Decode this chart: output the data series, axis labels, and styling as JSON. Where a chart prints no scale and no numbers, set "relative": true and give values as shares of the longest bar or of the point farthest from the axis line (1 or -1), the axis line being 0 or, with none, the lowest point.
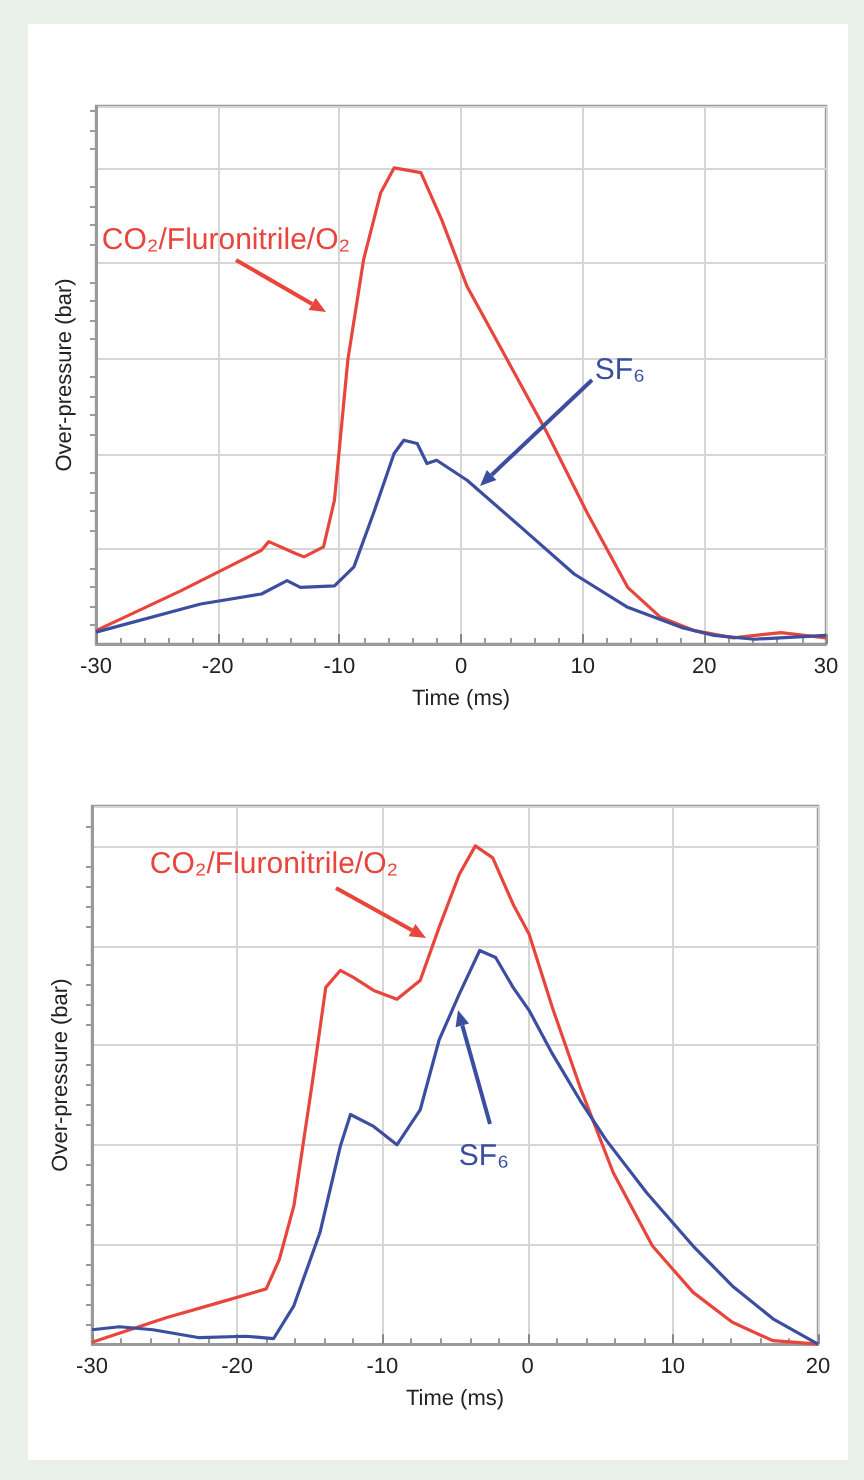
{
  "chart_data": [
    {
      "type": "line",
      "relative": true,
      "xlabel": "Time (ms)",
      "ylabel": "Over-pressure (bar)",
      "xlim": [
        -30,
        30
      ],
      "xticks": [
        -30,
        -20,
        -10,
        0,
        10,
        20,
        30
      ],
      "grid": true,
      "series": [
        {
          "name": "CO₂/Fluronitrile/O₂",
          "color": "#e8453c",
          "x": [
            -30,
            -23,
            -16.4,
            -15.8,
            -13.6,
            -12.9,
            -11.3,
            -10.4,
            -9.3,
            -8.0,
            -6.6,
            -5.5,
            -3.3,
            -1.6,
            0.5,
            3.8,
            7.1,
            10.4,
            13.7,
            16.4,
            19.2,
            22.4,
            26.3,
            30
          ],
          "values": [
            0.028,
            0.112,
            0.197,
            0.215,
            0.19,
            0.183,
            0.204,
            0.302,
            0.597,
            0.808,
            0.948,
            1.0,
            0.99,
            0.892,
            0.751,
            0.597,
            0.442,
            0.274,
            0.119,
            0.056,
            0.028,
            0.013,
            0.024,
            0.013
          ]
        },
        {
          "name": "SF₆",
          "color": "#3c4ea0",
          "x": [
            -30,
            -21.4,
            -16.4,
            -14.3,
            -13.2,
            -10.4,
            -8.8,
            -7.2,
            -5.5,
            -4.7,
            -3.6,
            -2.8,
            -2.0,
            0.5,
            4.9,
            9.3,
            13.7,
            18.1,
            20.8,
            24.1,
            30
          ],
          "values": [
            0.025,
            0.084,
            0.105,
            0.133,
            0.119,
            0.122,
            0.162,
            0.274,
            0.4,
            0.428,
            0.421,
            0.379,
            0.386,
            0.344,
            0.246,
            0.147,
            0.077,
            0.035,
            0.018,
            0.01,
            0.018
          ]
        }
      ]
    },
    {
      "type": "line",
      "relative": true,
      "xlabel": "Time (ms)",
      "ylabel": "Over-pressure (bar)",
      "xlim": [
        -30,
        20
      ],
      "xticks": [
        -30,
        -20,
        -10,
        0,
        10,
        20
      ],
      "grid": true,
      "series": [
        {
          "name": "CO₂/Fluronitrile/O₂",
          "color": "#e8453c",
          "x": [
            -30,
            -24.9,
            -21.2,
            -18,
            -17.1,
            -16.1,
            -14.8,
            -13.9,
            -12.9,
            -12.0,
            -10.6,
            -9.0,
            -7.4,
            -6.1,
            -4.7,
            -3.6,
            -2.4,
            -1.0,
            0.1,
            1.7,
            3.6,
            5.9,
            8.6,
            11.4,
            14.1,
            16.9,
            20
          ],
          "values": [
            0.004,
            0.053,
            0.084,
            0.111,
            0.17,
            0.277,
            0.53,
            0.716,
            0.75,
            0.736,
            0.71,
            0.692,
            0.73,
            0.836,
            0.943,
            1.0,
            0.976,
            0.883,
            0.823,
            0.676,
            0.517,
            0.344,
            0.197,
            0.104,
            0.044,
            0.007,
            0
          ]
        },
        {
          "name": "SF₆",
          "color": "#3c4ea0",
          "x": [
            -30,
            -28.1,
            -25.8,
            -22.6,
            -19.4,
            -17.5,
            -16.1,
            -14.3,
            -12.9,
            -12.2,
            -10.6,
            -9.0,
            -7.4,
            -6.1,
            -4.7,
            -3.3,
            -2.2,
            -1.0,
            0.1,
            1.7,
            3.6,
            5.4,
            8.2,
            11.4,
            14.1,
            16.9,
            20
          ],
          "values": [
            0.029,
            0.035,
            0.029,
            0.013,
            0.016,
            0.011,
            0.077,
            0.224,
            0.397,
            0.461,
            0.437,
            0.4,
            0.47,
            0.61,
            0.703,
            0.79,
            0.776,
            0.716,
            0.67,
            0.583,
            0.49,
            0.41,
            0.304,
            0.197,
            0.117,
            0.051,
            0
          ]
        }
      ]
    }
  ]
}
